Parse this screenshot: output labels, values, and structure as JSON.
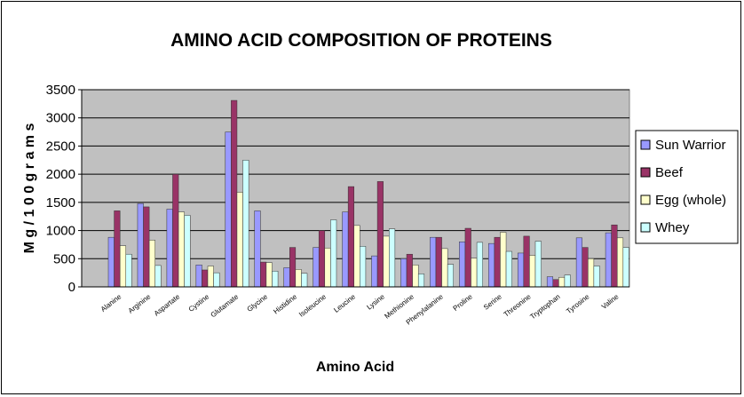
{
  "chart_data": {
    "type": "bar",
    "title": "AMINO ACID COMPOSITION OF PROTEINS",
    "xlabel": "Amino Acid",
    "ylabel": "M g / 1 0 0  g r a m s",
    "ylim": [
      0,
      3500
    ],
    "yticks": [
      0,
      500,
      1000,
      1500,
      2000,
      2500,
      3000,
      3500
    ],
    "grid": true,
    "legend_position": "right",
    "plot_background": "#c0c0c0",
    "categories": [
      "Alanine",
      "Arginine",
      "Aspartate",
      "Cystine",
      "Glutamate",
      "Glycine",
      "Histidine",
      "Isoleucine",
      "Leucine",
      "Lysine",
      "Methionine",
      "Phenylalanine",
      "Proline",
      "Serine",
      "Threonine",
      "Tryptophan",
      "Tyrosine",
      "Valine"
    ],
    "series": [
      {
        "name": "Sun Warrior",
        "color": "#9999ff",
        "values": [
          880,
          1480,
          1380,
          390,
          2750,
          1350,
          340,
          700,
          1330,
          550,
          500,
          880,
          800,
          770,
          600,
          180,
          870,
          960
        ]
      },
      {
        "name": "Beef",
        "color": "#993366",
        "values": [
          1350,
          1420,
          2000,
          300,
          3310,
          440,
          700,
          1000,
          1780,
          1870,
          580,
          880,
          1040,
          880,
          900,
          130,
          700,
          1100
        ]
      },
      {
        "name": "Egg (whole)",
        "color": "#ffffcc",
        "values": [
          730,
          830,
          1330,
          370,
          1680,
          430,
          310,
          690,
          1090,
          900,
          390,
          680,
          510,
          970,
          560,
          170,
          500,
          870
        ]
      },
      {
        "name": "Whey",
        "color": "#ccffff",
        "values": [
          580,
          380,
          1270,
          250,
          2250,
          280,
          240,
          1190,
          720,
          1030,
          230,
          400,
          790,
          630,
          810,
          210,
          370,
          700
        ]
      }
    ]
  }
}
